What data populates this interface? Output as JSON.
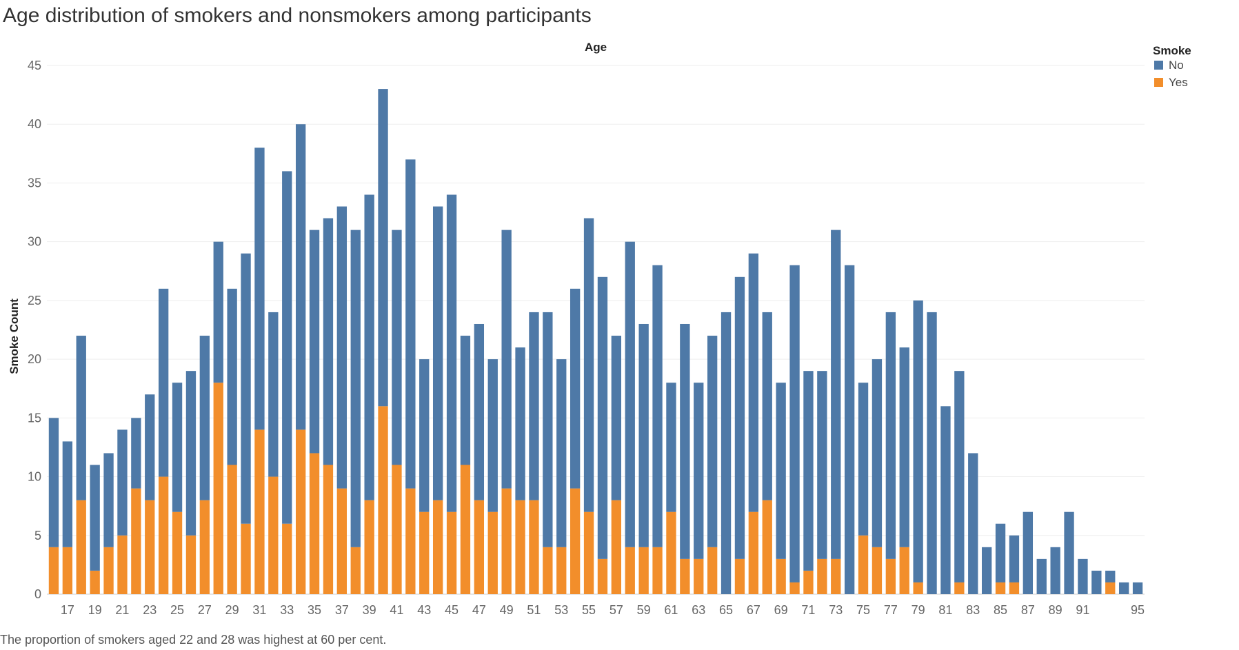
{
  "title": "Age distribution of smokers and nonsmokers among participants",
  "caption": "The proportion of smokers aged 22 and 28 was highest at 60 per cent.",
  "colors": {
    "No": "#4e79a7",
    "Yes": "#f28e2b",
    "grid": "#eeeeee",
    "axis": "#cccccc"
  },
  "chart_data": {
    "type": "bar",
    "stacked": true,
    "title": "Age distribution of smokers and nonsmokers among participants",
    "xlabel": "Age",
    "ylabel": "Smoke Count",
    "ylim": [
      0,
      45
    ],
    "yticks": [
      0,
      5,
      10,
      15,
      20,
      25,
      30,
      35,
      40,
      45
    ],
    "x_tick_labels": [
      17,
      19,
      21,
      23,
      25,
      27,
      29,
      31,
      33,
      35,
      37,
      39,
      41,
      43,
      45,
      47,
      49,
      51,
      53,
      55,
      57,
      59,
      61,
      63,
      65,
      67,
      69,
      71,
      73,
      75,
      77,
      79,
      81,
      83,
      85,
      87,
      89,
      91,
      95
    ],
    "grid": true,
    "legend": {
      "title": "Smoke",
      "position": "top-right",
      "entries": [
        "No",
        "Yes"
      ]
    },
    "categories": [
      16,
      17,
      18,
      19,
      20,
      21,
      22,
      23,
      24,
      25,
      26,
      27,
      28,
      29,
      30,
      31,
      32,
      33,
      34,
      35,
      36,
      37,
      38,
      39,
      40,
      41,
      42,
      43,
      44,
      45,
      46,
      47,
      48,
      49,
      50,
      51,
      52,
      53,
      54,
      55,
      56,
      57,
      58,
      59,
      60,
      61,
      62,
      63,
      64,
      65,
      66,
      67,
      68,
      69,
      70,
      71,
      72,
      73,
      74,
      75,
      76,
      77,
      78,
      79,
      80,
      81,
      82,
      83,
      84,
      85,
      86,
      87,
      88,
      89,
      90,
      91,
      92,
      93,
      94,
      95
    ],
    "series": [
      {
        "name": "No",
        "values": [
          11,
          9,
          14,
          9,
          8,
          9,
          6,
          9,
          16,
          11,
          14,
          14,
          12,
          15,
          23,
          24,
          14,
          30,
          26,
          19,
          21,
          24,
          27,
          26,
          27,
          20,
          28,
          13,
          25,
          27,
          11,
          15,
          13,
          22,
          13,
          16,
          20,
          16,
          17,
          25,
          24,
          14,
          26,
          19,
          24,
          11,
          20,
          15,
          18,
          24,
          24,
          22,
          16,
          15,
          27,
          17,
          16,
          28,
          28,
          13,
          16,
          21,
          17,
          24,
          24,
          16,
          18,
          12,
          4,
          5,
          4,
          7,
          3,
          4,
          7,
          3,
          2,
          1,
          1,
          1
        ]
      },
      {
        "name": "Yes",
        "values": [
          4,
          4,
          8,
          2,
          4,
          5,
          9,
          8,
          10,
          7,
          5,
          8,
          18,
          11,
          6,
          14,
          10,
          6,
          14,
          12,
          11,
          9,
          4,
          8,
          16,
          11,
          9,
          7,
          8,
          7,
          11,
          8,
          7,
          9,
          8,
          8,
          4,
          4,
          9,
          7,
          3,
          8,
          4,
          4,
          4,
          7,
          3,
          3,
          4,
          0,
          3,
          7,
          8,
          3,
          1,
          2,
          3,
          3,
          0,
          5,
          4,
          3,
          4,
          1,
          0,
          0,
          1,
          0,
          0,
          1,
          1,
          0,
          0,
          0,
          0,
          0,
          0,
          1,
          0,
          0
        ]
      }
    ]
  }
}
